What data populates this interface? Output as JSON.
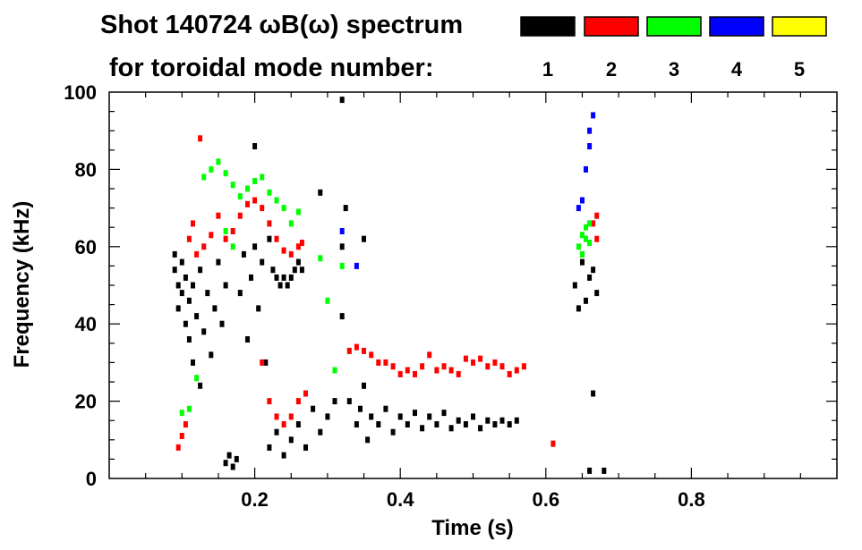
{
  "chart_data": {
    "type": "scatter",
    "title_line1": "Shot 140724 ωB(ω) spectrum",
    "title_line2": "for toroidal mode number:",
    "xlabel": "Time (s)",
    "ylabel": "Frequency (kHz)",
    "xlim": [
      0.0,
      1.0
    ],
    "ylim": [
      0,
      100
    ],
    "xticks": [
      0.2,
      0.4,
      0.6,
      0.8
    ],
    "yticks": [
      0,
      20,
      40,
      60,
      80,
      100
    ],
    "grid": false,
    "legend_placement": "top-right",
    "legend": [
      {
        "label": "1",
        "color": "#000000"
      },
      {
        "label": "2",
        "color": "#ff0000"
      },
      {
        "label": "3",
        "color": "#00ff00"
      },
      {
        "label": "4",
        "color": "#0000ff"
      },
      {
        "label": "5",
        "color": "#ffff00"
      }
    ],
    "series": [
      {
        "name": "1",
        "color": "#000000",
        "points": [
          [
            0.09,
            58
          ],
          [
            0.09,
            54
          ],
          [
            0.095,
            50
          ],
          [
            0.095,
            44
          ],
          [
            0.1,
            56
          ],
          [
            0.1,
            48
          ],
          [
            0.105,
            40
          ],
          [
            0.105,
            52
          ],
          [
            0.11,
            46
          ],
          [
            0.11,
            36
          ],
          [
            0.115,
            50
          ],
          [
            0.115,
            30
          ],
          [
            0.12,
            42
          ],
          [
            0.125,
            54
          ],
          [
            0.125,
            24
          ],
          [
            0.13,
            38
          ],
          [
            0.135,
            48
          ],
          [
            0.14,
            32
          ],
          [
            0.145,
            44
          ],
          [
            0.15,
            56
          ],
          [
            0.155,
            40
          ],
          [
            0.16,
            50
          ],
          [
            0.16,
            4
          ],
          [
            0.165,
            6
          ],
          [
            0.17,
            3
          ],
          [
            0.175,
            5
          ],
          [
            0.18,
            48
          ],
          [
            0.185,
            58
          ],
          [
            0.19,
            36
          ],
          [
            0.195,
            52
          ],
          [
            0.2,
            86
          ],
          [
            0.2,
            60
          ],
          [
            0.205,
            44
          ],
          [
            0.21,
            56
          ],
          [
            0.215,
            30
          ],
          [
            0.22,
            62
          ],
          [
            0.225,
            54
          ],
          [
            0.23,
            52
          ],
          [
            0.235,
            50
          ],
          [
            0.24,
            52
          ],
          [
            0.245,
            50
          ],
          [
            0.25,
            52
          ],
          [
            0.255,
            54
          ],
          [
            0.26,
            56
          ],
          [
            0.265,
            54
          ],
          [
            0.22,
            8
          ],
          [
            0.23,
            12
          ],
          [
            0.24,
            6
          ],
          [
            0.25,
            10
          ],
          [
            0.26,
            14
          ],
          [
            0.27,
            8
          ],
          [
            0.28,
            18
          ],
          [
            0.29,
            74
          ],
          [
            0.29,
            12
          ],
          [
            0.3,
            16
          ],
          [
            0.31,
            20
          ],
          [
            0.32,
            98
          ],
          [
            0.32,
            60
          ],
          [
            0.32,
            42
          ],
          [
            0.325,
            70
          ],
          [
            0.33,
            20
          ],
          [
            0.34,
            14
          ],
          [
            0.345,
            18
          ],
          [
            0.35,
            62
          ],
          [
            0.35,
            24
          ],
          [
            0.355,
            10
          ],
          [
            0.36,
            16
          ],
          [
            0.37,
            14
          ],
          [
            0.38,
            18
          ],
          [
            0.39,
            12
          ],
          [
            0.4,
            16
          ],
          [
            0.41,
            14
          ],
          [
            0.42,
            17
          ],
          [
            0.43,
            13
          ],
          [
            0.44,
            16
          ],
          [
            0.45,
            14
          ],
          [
            0.46,
            17
          ],
          [
            0.47,
            13
          ],
          [
            0.48,
            15
          ],
          [
            0.49,
            14
          ],
          [
            0.5,
            16
          ],
          [
            0.51,
            13
          ],
          [
            0.52,
            15
          ],
          [
            0.53,
            14
          ],
          [
            0.54,
            15
          ],
          [
            0.55,
            14
          ],
          [
            0.56,
            15
          ],
          [
            0.64,
            50
          ],
          [
            0.645,
            44
          ],
          [
            0.65,
            56
          ],
          [
            0.655,
            46
          ],
          [
            0.66,
            52
          ],
          [
            0.665,
            54
          ],
          [
            0.67,
            48
          ],
          [
            0.665,
            22
          ],
          [
            0.66,
            2
          ],
          [
            0.68,
            2
          ]
        ]
      },
      {
        "name": "2",
        "color": "#ff0000",
        "points": [
          [
            0.095,
            8
          ],
          [
            0.1,
            11
          ],
          [
            0.105,
            14
          ],
          [
            0.11,
            62
          ],
          [
            0.115,
            66
          ],
          [
            0.12,
            58
          ],
          [
            0.125,
            88
          ],
          [
            0.13,
            60
          ],
          [
            0.14,
            63
          ],
          [
            0.15,
            68
          ],
          [
            0.16,
            62
          ],
          [
            0.17,
            64
          ],
          [
            0.18,
            68
          ],
          [
            0.19,
            71
          ],
          [
            0.2,
            72
          ],
          [
            0.21,
            70
          ],
          [
            0.22,
            66
          ],
          [
            0.23,
            62
          ],
          [
            0.24,
            59
          ],
          [
            0.25,
            58
          ],
          [
            0.26,
            60
          ],
          [
            0.265,
            61
          ],
          [
            0.21,
            30
          ],
          [
            0.22,
            20
          ],
          [
            0.23,
            16
          ],
          [
            0.24,
            14
          ],
          [
            0.25,
            16
          ],
          [
            0.26,
            20
          ],
          [
            0.27,
            22
          ],
          [
            0.33,
            33
          ],
          [
            0.34,
            34
          ],
          [
            0.35,
            33
          ],
          [
            0.36,
            32
          ],
          [
            0.37,
            30
          ],
          [
            0.38,
            30
          ],
          [
            0.39,
            29
          ],
          [
            0.4,
            27
          ],
          [
            0.41,
            28
          ],
          [
            0.42,
            27
          ],
          [
            0.43,
            29
          ],
          [
            0.44,
            32
          ],
          [
            0.45,
            28
          ],
          [
            0.46,
            29
          ],
          [
            0.47,
            28
          ],
          [
            0.48,
            27
          ],
          [
            0.49,
            31
          ],
          [
            0.5,
            30
          ],
          [
            0.51,
            31
          ],
          [
            0.52,
            29
          ],
          [
            0.53,
            30
          ],
          [
            0.54,
            29
          ],
          [
            0.55,
            27
          ],
          [
            0.56,
            28
          ],
          [
            0.57,
            29
          ],
          [
            0.61,
            9
          ],
          [
            0.65,
            58
          ],
          [
            0.665,
            66
          ],
          [
            0.67,
            68
          ],
          [
            0.67,
            62
          ]
        ]
      },
      {
        "name": "3",
        "color": "#00ff00",
        "points": [
          [
            0.1,
            17
          ],
          [
            0.11,
            18
          ],
          [
            0.12,
            26
          ],
          [
            0.13,
            78
          ],
          [
            0.14,
            80
          ],
          [
            0.15,
            82
          ],
          [
            0.16,
            79
          ],
          [
            0.17,
            76
          ],
          [
            0.18,
            73
          ],
          [
            0.19,
            75
          ],
          [
            0.2,
            77
          ],
          [
            0.21,
            78
          ],
          [
            0.22,
            74
          ],
          [
            0.23,
            72
          ],
          [
            0.24,
            70
          ],
          [
            0.25,
            66
          ],
          [
            0.26,
            69
          ],
          [
            0.16,
            64
          ],
          [
            0.17,
            60
          ],
          [
            0.29,
            57
          ],
          [
            0.3,
            46
          ],
          [
            0.31,
            28
          ],
          [
            0.32,
            55
          ],
          [
            0.645,
            60
          ],
          [
            0.65,
            63
          ],
          [
            0.655,
            65
          ],
          [
            0.66,
            66
          ],
          [
            0.655,
            62
          ],
          [
            0.65,
            58
          ],
          [
            0.66,
            61
          ]
        ]
      },
      {
        "name": "4",
        "color": "#0000ff",
        "points": [
          [
            0.32,
            64
          ],
          [
            0.34,
            55
          ],
          [
            0.645,
            70
          ],
          [
            0.65,
            72
          ],
          [
            0.655,
            80
          ],
          [
            0.66,
            86
          ],
          [
            0.665,
            94
          ],
          [
            0.66,
            90
          ]
        ]
      },
      {
        "name": "5",
        "color": "#ffff00",
        "points": []
      }
    ]
  }
}
